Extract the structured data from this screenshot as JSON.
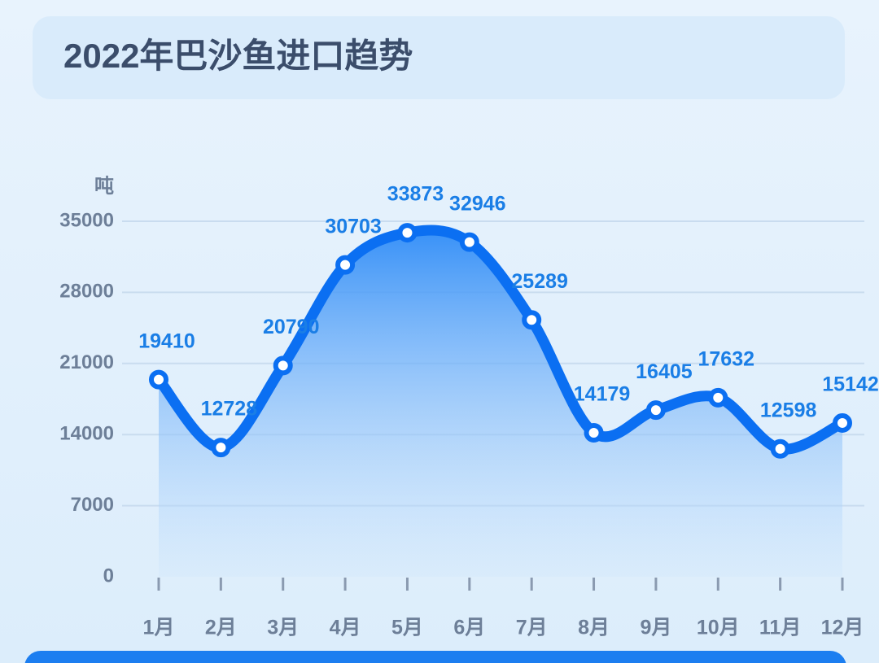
{
  "chart_data": {
    "type": "line",
    "title": "2022年巴沙鱼进口趋势",
    "y_label": "吨",
    "categories": [
      "1月",
      "2月",
      "3月",
      "4月",
      "5月",
      "6月",
      "7月",
      "8月",
      "9月",
      "10月",
      "11月",
      "12月"
    ],
    "values": [
      19410,
      12728,
      20790,
      30703,
      33873,
      32946,
      25289,
      14179,
      16405,
      17632,
      12598,
      15142
    ],
    "color": "#0b6ff2",
    "ylim": [
      0,
      35000
    ],
    "yticks": [
      0,
      7000,
      14000,
      21000,
      28000,
      35000
    ],
    "grid": true
  }
}
